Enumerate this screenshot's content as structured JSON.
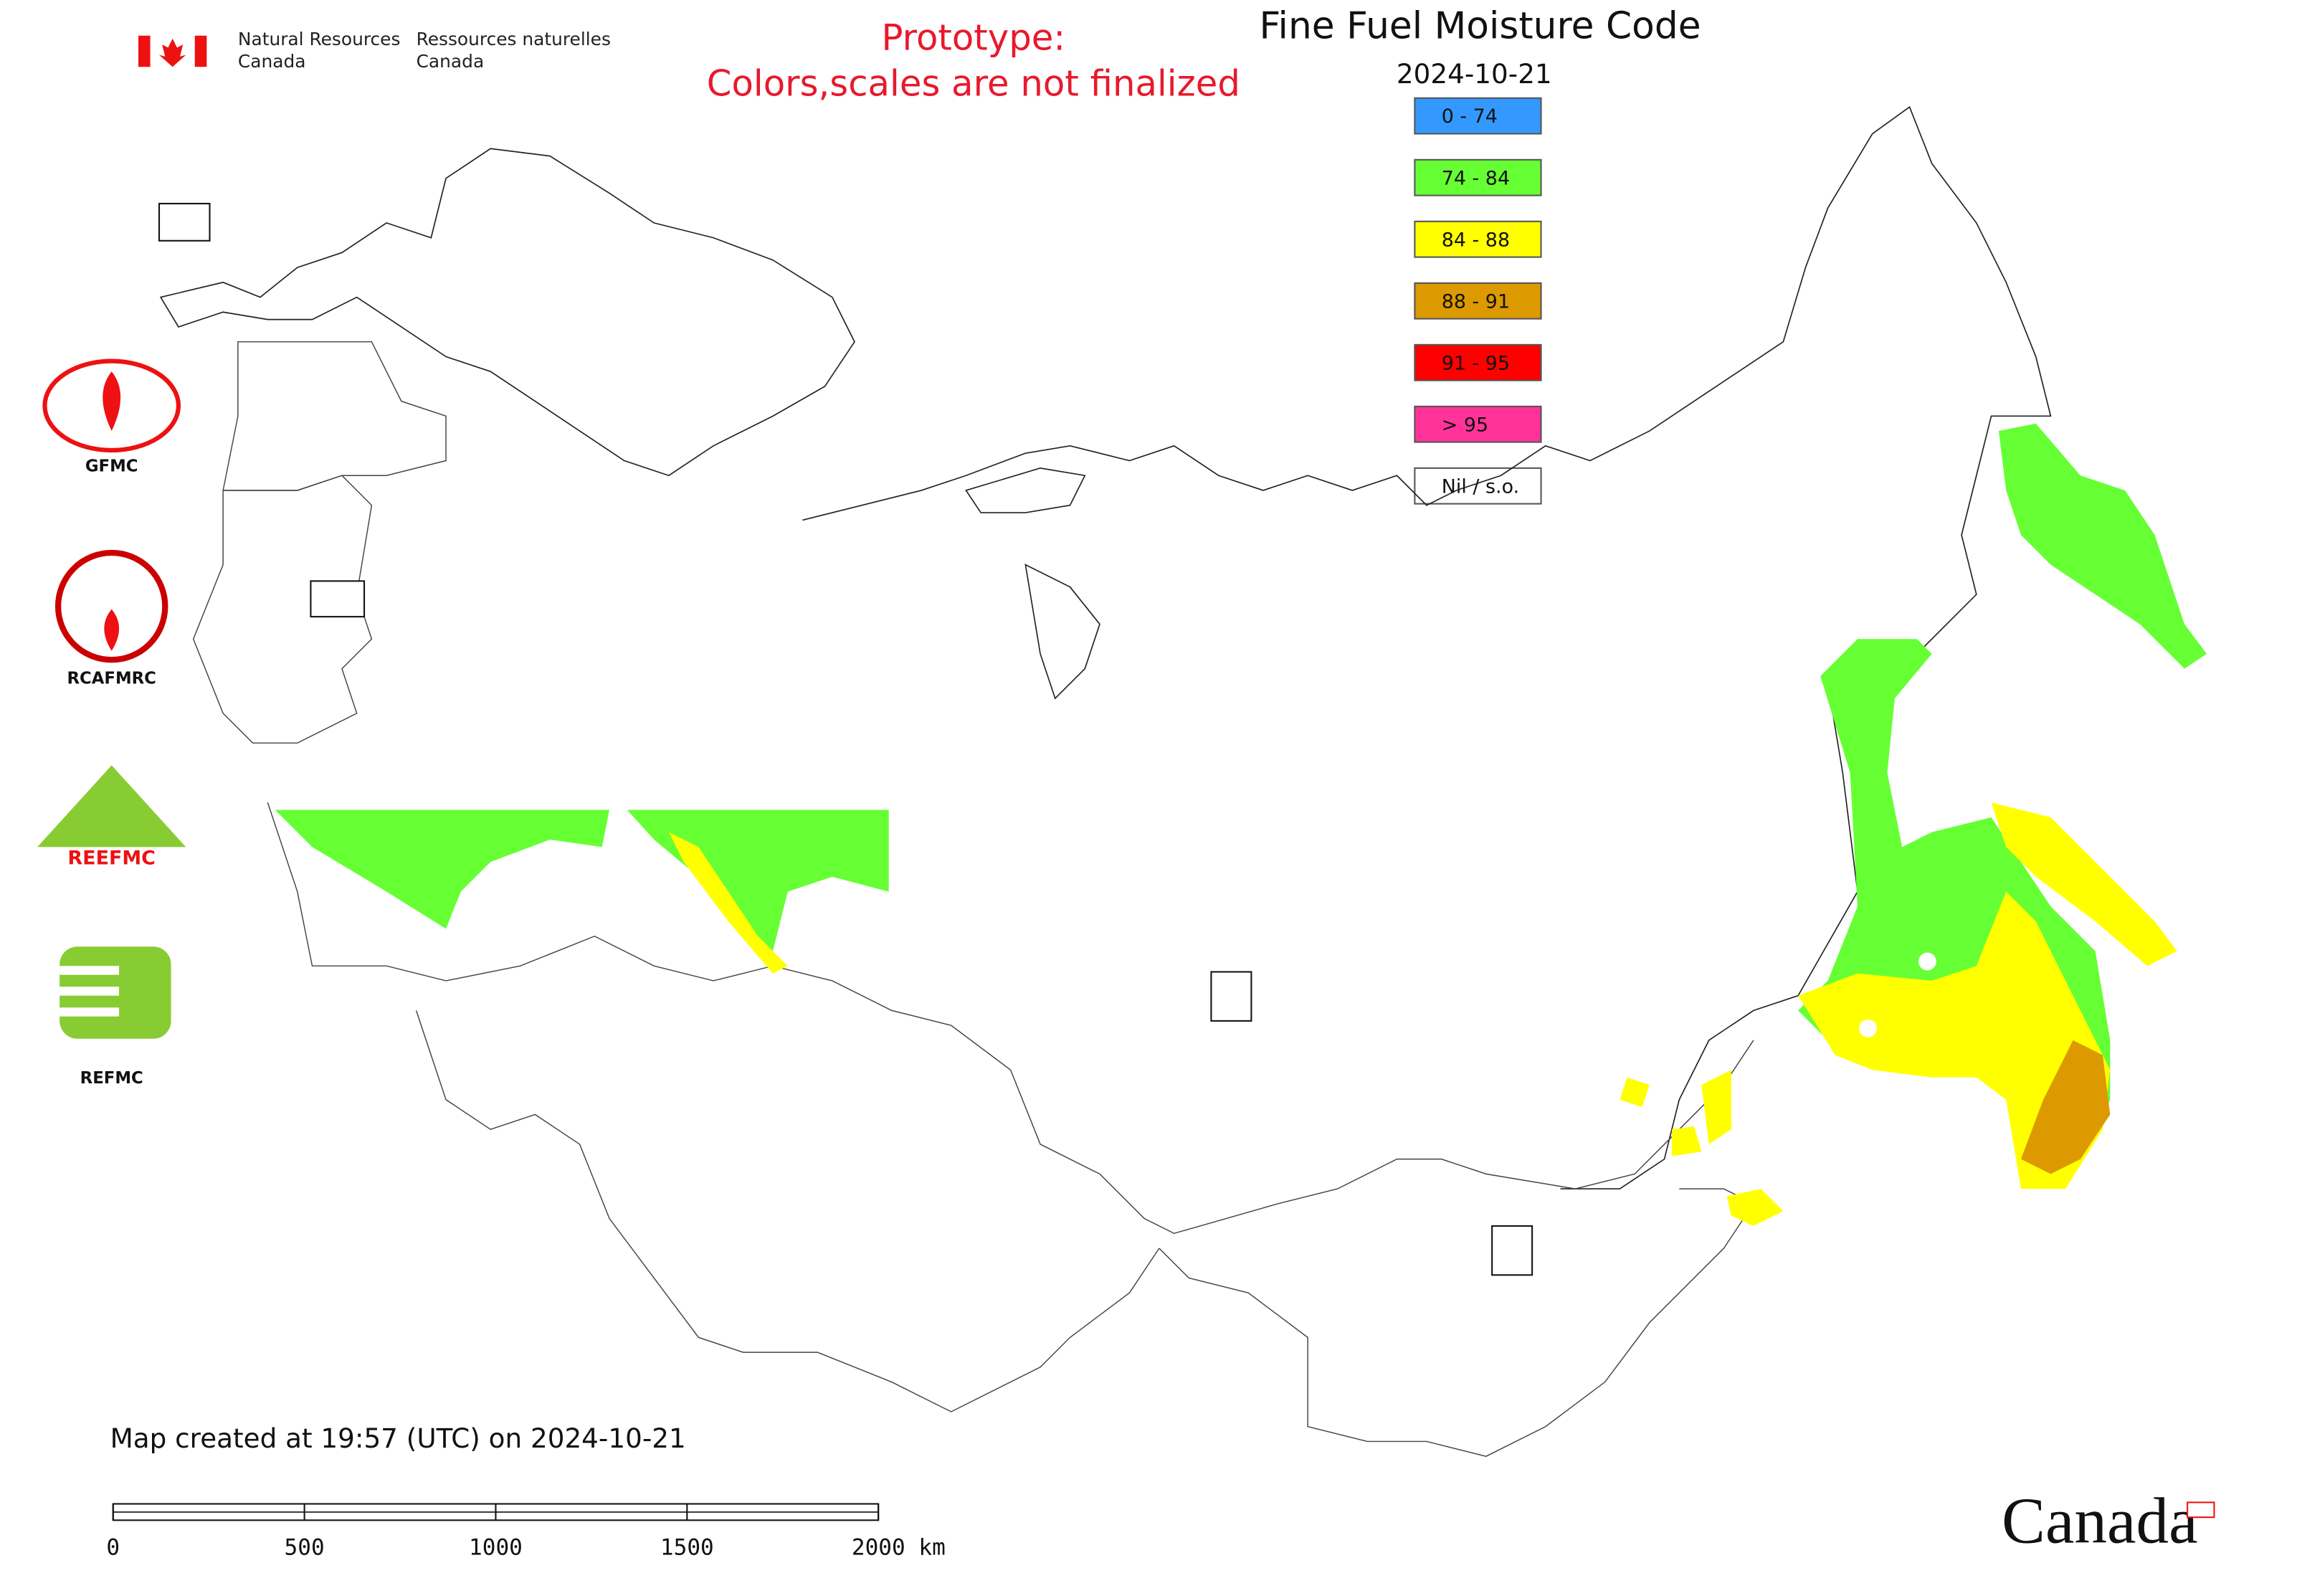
{
  "header": {
    "agency_en": [
      "Natural Resources",
      "Canada"
    ],
    "agency_fr": [
      "Ressources naturelles",
      "Canada"
    ],
    "prototype": [
      "Prototype:",
      "Colors,scales are not finalized"
    ]
  },
  "map": {
    "title": "Fine Fuel Moisture Code",
    "date": "2024-10-21",
    "legend": [
      {
        "label": "0 - 74",
        "color": "#3399ff"
      },
      {
        "label": "74 - 84",
        "color": "#66ff33"
      },
      {
        "label": "84 - 88",
        "color": "#ffff00"
      },
      {
        "label": "88 - 91",
        "color": "#dd9900"
      },
      {
        "label": "91 - 95",
        "color": "#ff0000"
      },
      {
        "label": "> 95",
        "color": "#ff3399"
      },
      {
        "label": "Nil / s.o.",
        "color": "#ffffff"
      }
    ],
    "logos": [
      "GFMC",
      "RCAFMRC",
      "REEFMC",
      "REFMC"
    ],
    "created": "Map created at 19:57 (UTC) on 2024-10-21",
    "scale": [
      "0",
      "500",
      "1000",
      "1500",
      "2000 km"
    ]
  },
  "wordmark": "Canada"
}
